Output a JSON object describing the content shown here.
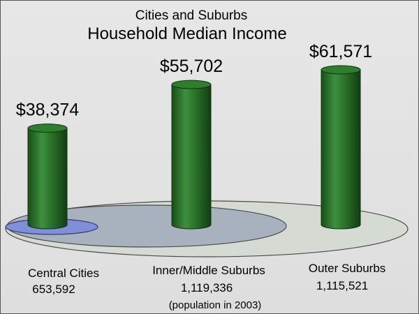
{
  "chart_data": {
    "type": "bar",
    "title": "Household Median Income",
    "subtitle": "Cities and Suburbs",
    "categories": [
      "Central Cities",
      "Inner/Middle Suburbs",
      "Outer Suburbs"
    ],
    "values": [
      38374,
      55702,
      61571
    ],
    "value_labels": [
      "$38,374",
      "$55,702",
      "$61,571"
    ],
    "populations": [
      "653,592",
      "1,119,336",
      "1,115,521"
    ],
    "note": "(population in 2003)",
    "xlabel": "",
    "ylabel": "",
    "ylim": [
      0,
      61571
    ],
    "grid": false,
    "legend": "none"
  },
  "colors": {
    "background": "#595959",
    "bar": "#2e7a2e",
    "outer_ellipse": "#d7dcd6",
    "middle_ellipse": "#a9b3bf",
    "inner_ellipse": "#7f8fd6"
  }
}
